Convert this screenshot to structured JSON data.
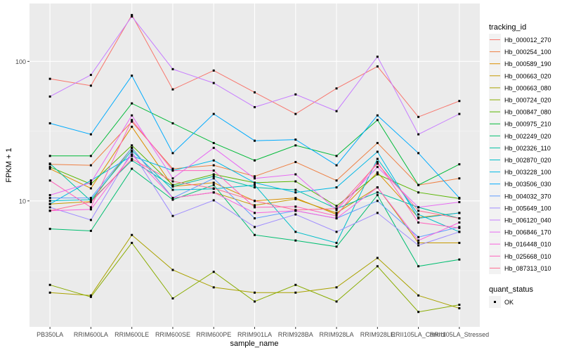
{
  "chart_data": {
    "type": "line",
    "xlabel": "sample_name",
    "ylabel": "FPKM + 1",
    "y_scale": "log10",
    "ylim": [
      1.25,
      260
    ],
    "y_ticks": [
      10,
      100
    ],
    "y_tick_labels": [
      "10",
      "100"
    ],
    "grid": true,
    "legend_position": "right",
    "categories": [
      "PB350LA",
      "RRIM600LA",
      "RRIM600LE",
      "RRIM600SE",
      "RRIM600PE",
      "RRIM901LA",
      "RRIM928BA",
      "RRIM928LA",
      "RRIM928LE",
      "RRII105LA_Control",
      "RRII105LA_Stressed"
    ],
    "legend_title": "tracking_id",
    "series": [
      {
        "name": "Hb_000012_270",
        "color": "#F8766D",
        "values": [
          75,
          67,
          215,
          63,
          86,
          60,
          42,
          64,
          92,
          40,
          52
        ]
      },
      {
        "name": "Hb_000254_100",
        "color": "#EE8044",
        "values": [
          18.3,
          18,
          37,
          17,
          18,
          15,
          19,
          14,
          26,
          13,
          14.5
        ]
      },
      {
        "name": "Hb_000589_190",
        "color": "#DB8E00",
        "values": [
          17,
          12.3,
          34,
          12.7,
          13.5,
          10,
          10.5,
          8,
          16,
          7.6,
          8.2
        ]
      },
      {
        "name": "Hb_000663_020",
        "color": "#C59900",
        "values": [
          9.5,
          9.9,
          24,
          10.5,
          11.5,
          9.3,
          10.3,
          8.2,
          12.5,
          5,
          5
        ]
      },
      {
        "name": "Hb_000663_080",
        "color": "#AAA200",
        "values": [
          2.2,
          2.1,
          5.7,
          3.2,
          2.4,
          2.2,
          2.2,
          2.4,
          3.9,
          2.1,
          1.7
        ]
      },
      {
        "name": "Hb_000724_020",
        "color": "#89AC00",
        "values": [
          2.5,
          2.05,
          5,
          2,
          3.1,
          1.9,
          2.5,
          1.9,
          3.4,
          1.6,
          1.8
        ]
      },
      {
        "name": "Hb_000847_080",
        "color": "#58B500",
        "values": [
          17.5,
          13.2,
          25,
          13,
          15.5,
          13.5,
          13.8,
          9.2,
          15.5,
          11.5,
          10.4
        ]
      },
      {
        "name": "Hb_000975_210",
        "color": "#00BA38",
        "values": [
          21,
          21,
          50,
          36,
          26,
          19.5,
          25,
          21,
          38,
          13,
          18.3
        ]
      },
      {
        "name": "Hb_002249_020",
        "color": "#00BE71",
        "values": [
          6.3,
          6.1,
          17,
          10.2,
          13,
          5.7,
          5.2,
          4.7,
          11,
          3.4,
          3.8
        ]
      },
      {
        "name": "Hb_002326_110",
        "color": "#00C0A1",
        "values": [
          18.5,
          10,
          19.5,
          12.7,
          15,
          12.5,
          12,
          8.8,
          11.5,
          9,
          7.5
        ]
      },
      {
        "name": "Hb_002870_020",
        "color": "#00BECA",
        "values": [
          10,
          10.2,
          23,
          12,
          12.2,
          13,
          6,
          5,
          20,
          8,
          6
        ]
      },
      {
        "name": "Hb_003228_100",
        "color": "#00B8E5",
        "values": [
          9.5,
          14,
          21,
          16.5,
          19.5,
          13.5,
          11.5,
          12.5,
          22.5,
          7.5,
          8.2
        ]
      },
      {
        "name": "Hb_003506_030",
        "color": "#00ABFD",
        "values": [
          36,
          30,
          79,
          22,
          42,
          27,
          27.5,
          18,
          41,
          22,
          10.5
        ]
      },
      {
        "name": "Hb_004032_370",
        "color": "#619CFF",
        "values": [
          10.5,
          10.5,
          24,
          10.5,
          14.5,
          7.5,
          8.5,
          7.5,
          10,
          5.5,
          6.5
        ]
      },
      {
        "name": "Hb_005649_100",
        "color": "#9F8CFF",
        "values": [
          9,
          7.3,
          22.5,
          7.8,
          10.1,
          6.5,
          8,
          6,
          8.2,
          4.8,
          6
        ]
      },
      {
        "name": "Hb_006120_040",
        "color": "#C77CFF",
        "values": [
          56,
          80,
          210,
          88,
          70,
          47,
          58,
          44,
          108,
          30,
          42
        ]
      },
      {
        "name": "Hb_006846_170",
        "color": "#E76BF3",
        "values": [
          11,
          13.5,
          41,
          14.5,
          24,
          14.5,
          15.5,
          8.6,
          17.5,
          9,
          9.8
        ]
      },
      {
        "name": "Hb_016448_010",
        "color": "#F962DD",
        "values": [
          8.5,
          8.7,
          21.5,
          10.5,
          11.5,
          8.2,
          8.5,
          7.5,
          12.5,
          5.2,
          7
        ]
      },
      {
        "name": "Hb_025668_010",
        "color": "#FF62BC",
        "values": [
          14,
          9,
          38,
          16.5,
          16.5,
          9,
          9.1,
          7.8,
          19,
          7,
          6.4
        ]
      },
      {
        "name": "Hb_087313_010",
        "color": "#FF6C91",
        "values": [
          8.5,
          9.8,
          20,
          13.8,
          12.3,
          10,
          8.6,
          8.8,
          18.5,
          8.5,
          7.5
        ]
      }
    ],
    "shape_legend": {
      "title": "quant_status",
      "items": [
        {
          "label": "OK"
        }
      ]
    }
  }
}
